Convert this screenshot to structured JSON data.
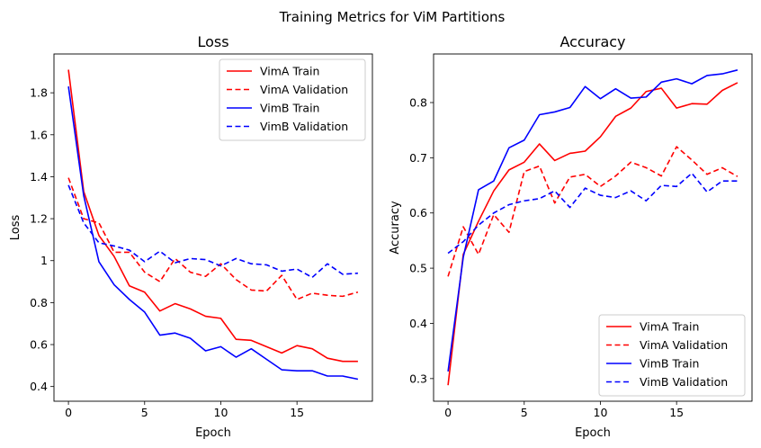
{
  "suptitle": "Training Metrics for ViM Partitions",
  "colors": {
    "vima": "#ff0000",
    "vimb": "#0000ff"
  },
  "chart_data": [
    {
      "type": "line",
      "title": "Loss",
      "xlabel": "Epoch",
      "ylabel": "Loss",
      "xlim": [
        -0.95,
        19.95
      ],
      "ylim": [
        0.33,
        1.985
      ],
      "xticks": [
        0,
        5,
        10,
        15
      ],
      "yticks": [
        0.4,
        0.6,
        0.8,
        1.0,
        1.2,
        1.4,
        1.6,
        1.8
      ],
      "legend": "top-right",
      "x": [
        0,
        1,
        2,
        3,
        4,
        5,
        6,
        7,
        8,
        9,
        10,
        11,
        12,
        13,
        14,
        15,
        16,
        17,
        18,
        19
      ],
      "series": [
        {
          "name": "VimA Train",
          "color": "#ff0000",
          "dash": false,
          "values": [
            1.91,
            1.33,
            1.12,
            1.02,
            0.88,
            0.85,
            0.76,
            0.795,
            0.77,
            0.735,
            0.725,
            0.625,
            0.62,
            0.59,
            0.56,
            0.595,
            0.58,
            0.535,
            0.52,
            0.52
          ]
        },
        {
          "name": "VimA Validation",
          "color": "#ff0000",
          "dash": true,
          "values": [
            1.395,
            1.2,
            1.18,
            1.04,
            1.04,
            0.945,
            0.9,
            1.01,
            0.945,
            0.925,
            0.985,
            0.91,
            0.86,
            0.855,
            0.93,
            0.815,
            0.845,
            0.835,
            0.83,
            0.85
          ]
        },
        {
          "name": "VimB Train",
          "color": "#0000ff",
          "dash": false,
          "values": [
            1.83,
            1.31,
            0.995,
            0.885,
            0.815,
            0.755,
            0.645,
            0.655,
            0.63,
            0.57,
            0.59,
            0.54,
            0.58,
            0.53,
            0.48,
            0.475,
            0.475,
            0.45,
            0.45,
            0.435
          ]
        },
        {
          "name": "VimB Validation",
          "color": "#0000ff",
          "dash": true,
          "values": [
            1.36,
            1.18,
            1.085,
            1.07,
            1.05,
            0.995,
            1.045,
            0.99,
            1.01,
            1.005,
            0.975,
            1.01,
            0.985,
            0.98,
            0.95,
            0.96,
            0.92,
            0.985,
            0.935,
            0.94
          ]
        }
      ]
    },
    {
      "type": "line",
      "title": "Accuracy",
      "xlabel": "Epoch",
      "ylabel": "Accuracy",
      "xlim": [
        -0.95,
        19.95
      ],
      "ylim": [
        0.259,
        0.888
      ],
      "xticks": [
        0,
        5,
        10,
        15
      ],
      "yticks": [
        0.3,
        0.4,
        0.5,
        0.6,
        0.7,
        0.8
      ],
      "legend": "bottom-right",
      "x": [
        0,
        1,
        2,
        3,
        4,
        5,
        6,
        7,
        8,
        9,
        10,
        11,
        12,
        13,
        14,
        15,
        16,
        17,
        18,
        19
      ],
      "series": [
        {
          "name": "VimA Train",
          "color": "#ff0000",
          "dash": false,
          "values": [
            0.288,
            0.525,
            0.585,
            0.64,
            0.678,
            0.692,
            0.725,
            0.695,
            0.708,
            0.712,
            0.738,
            0.775,
            0.79,
            0.82,
            0.826,
            0.79,
            0.798,
            0.797,
            0.822,
            0.836
          ]
        },
        {
          "name": "VimA Validation",
          "color": "#ff0000",
          "dash": true,
          "values": [
            0.485,
            0.575,
            0.525,
            0.597,
            0.565,
            0.675,
            0.685,
            0.618,
            0.665,
            0.67,
            0.648,
            0.667,
            0.692,
            0.682,
            0.667,
            0.72,
            0.696,
            0.67,
            0.682,
            0.666
          ]
        },
        {
          "name": "VimB Train",
          "color": "#0000ff",
          "dash": false,
          "values": [
            0.313,
            0.52,
            0.642,
            0.658,
            0.718,
            0.732,
            0.778,
            0.783,
            0.791,
            0.829,
            0.807,
            0.825,
            0.808,
            0.81,
            0.837,
            0.843,
            0.834,
            0.849,
            0.852,
            0.859
          ]
        },
        {
          "name": "VimB Validation",
          "color": "#0000ff",
          "dash": true,
          "values": [
            0.527,
            0.548,
            0.578,
            0.6,
            0.615,
            0.622,
            0.626,
            0.64,
            0.61,
            0.645,
            0.632,
            0.628,
            0.64,
            0.622,
            0.65,
            0.648,
            0.672,
            0.638,
            0.658,
            0.658
          ]
        }
      ]
    }
  ]
}
